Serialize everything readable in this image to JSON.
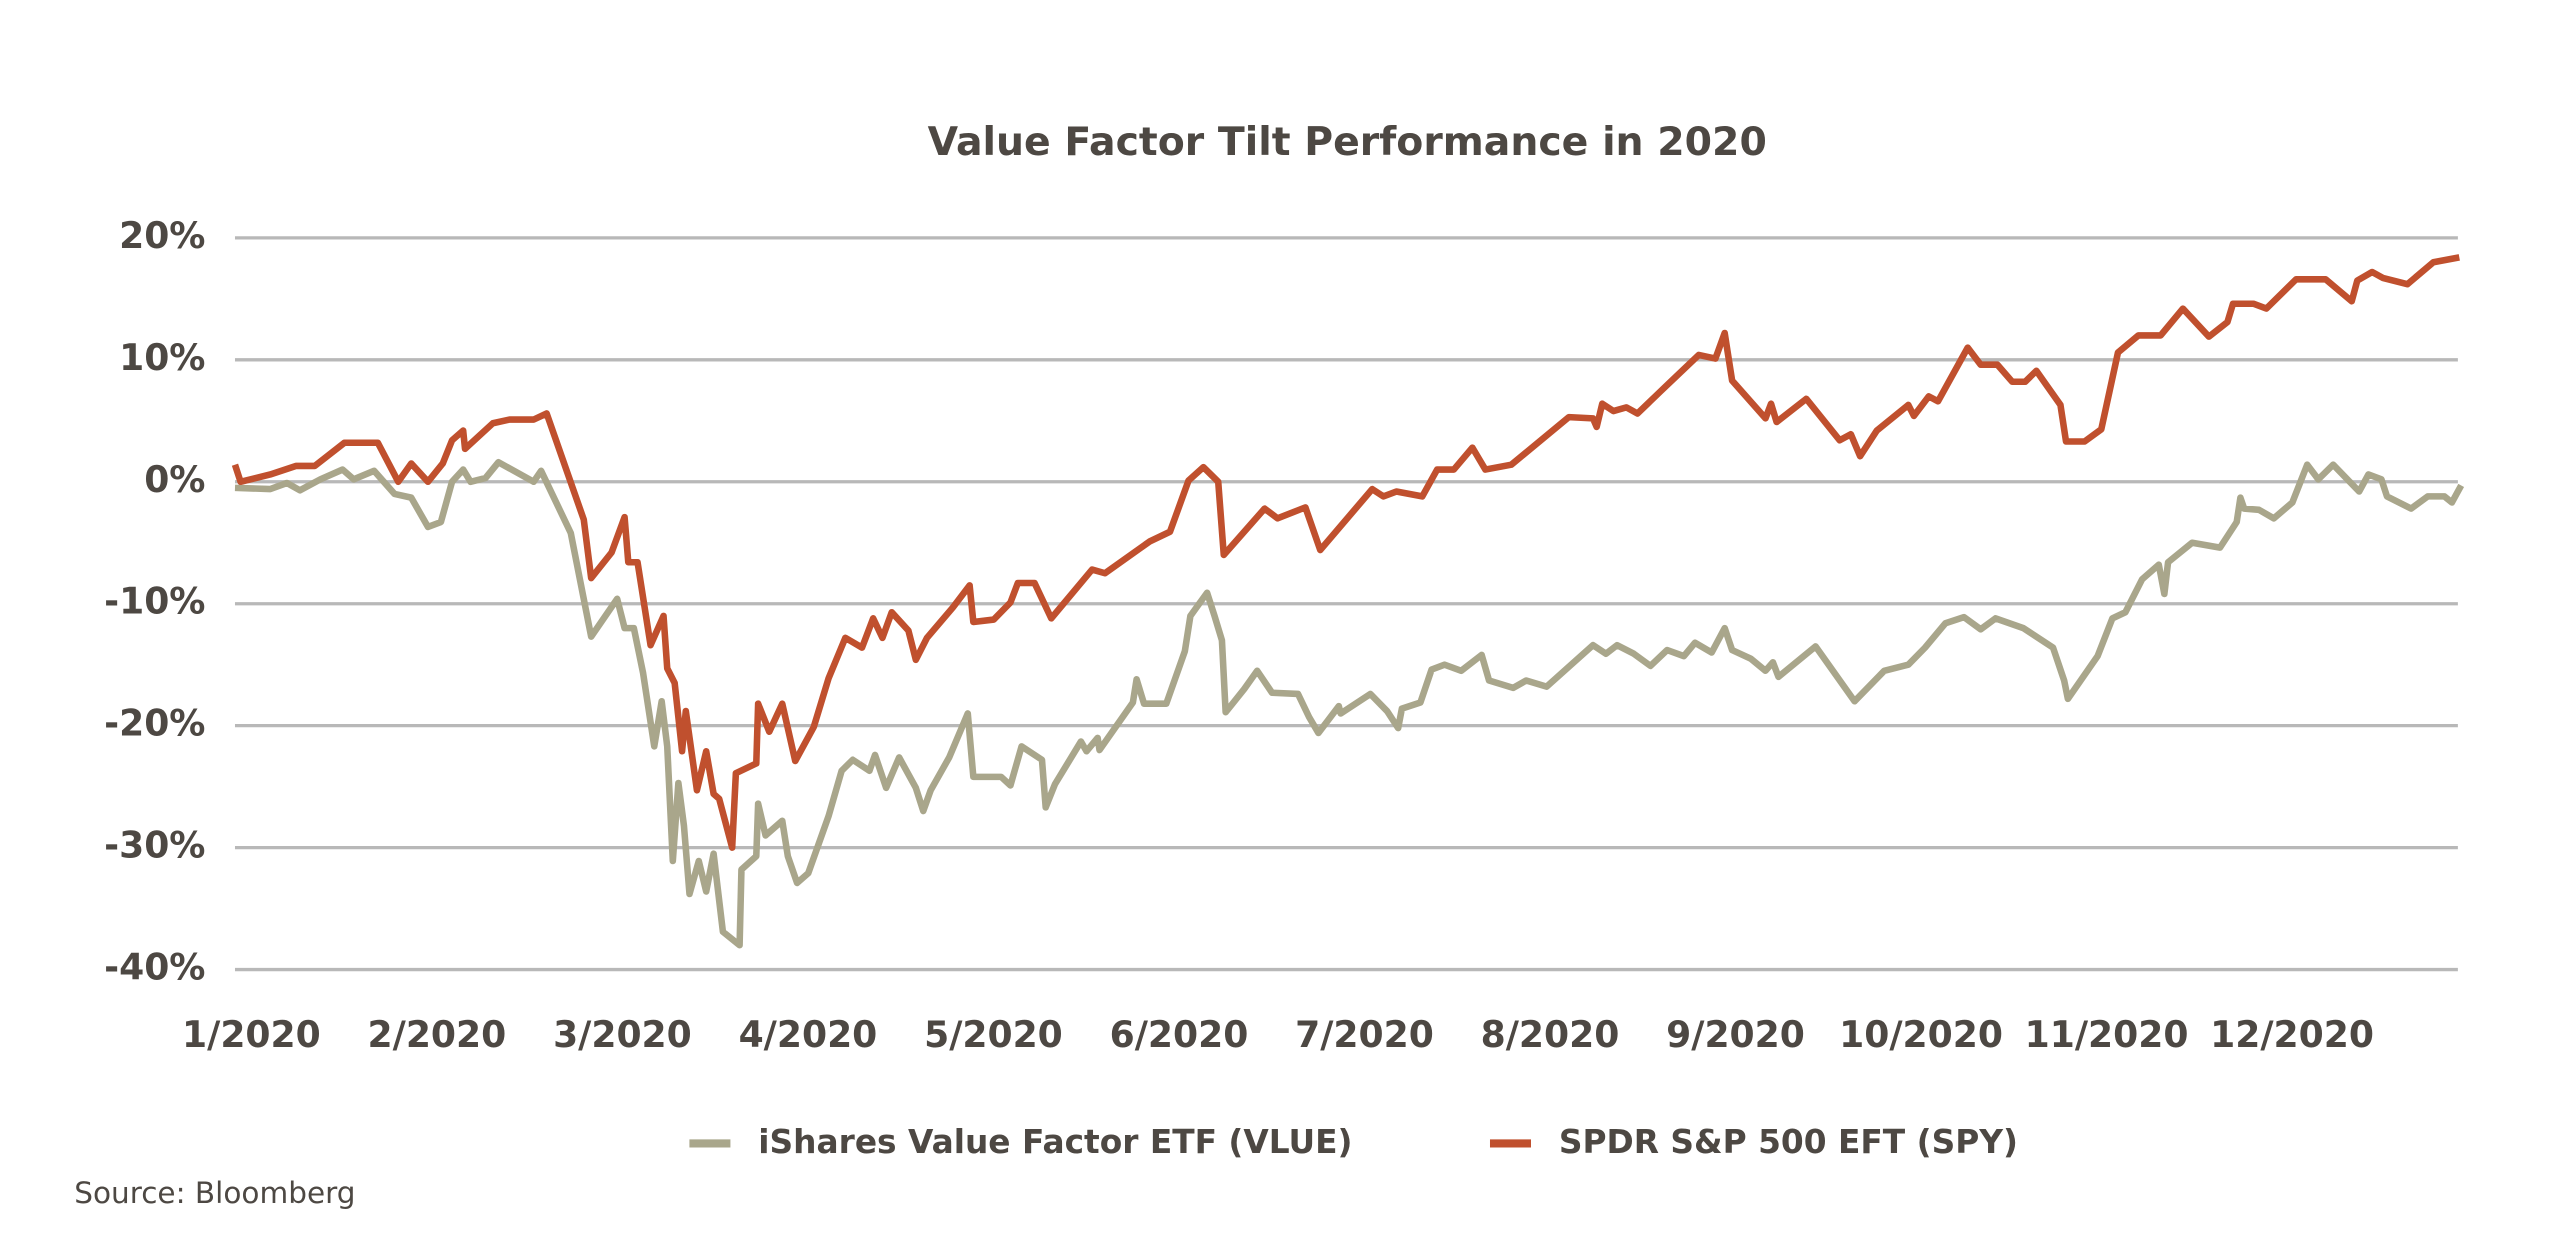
{
  "chart_data": {
    "type": "line",
    "title": "Value Factor Tilt Performance in 2020",
    "source": "Source: Bloomberg",
    "xlim": [
      0,
      12
    ],
    "xticks": [
      {
        "value": 0,
        "label": "1/2020"
      },
      {
        "value": 1,
        "label": "2/2020"
      },
      {
        "value": 2,
        "label": "3/2020"
      },
      {
        "value": 3,
        "label": "4/2020"
      },
      {
        "value": 4,
        "label": "5/2020"
      },
      {
        "value": 5,
        "label": "6/2020"
      },
      {
        "value": 6,
        "label": "7/2020"
      },
      {
        "value": 7,
        "label": "8/2020"
      },
      {
        "value": 8,
        "label": "9/2020"
      },
      {
        "value": 9,
        "label": "10/2020"
      },
      {
        "value": 10,
        "label": "11/2020"
      },
      {
        "value": 11,
        "label": "12/2020"
      }
    ],
    "ylim": [
      -40,
      20
    ],
    "yticks": [
      {
        "value": 20,
        "label": "20%"
      },
      {
        "value": 10,
        "label": "10%"
      },
      {
        "value": 0,
        "label": "0%"
      },
      {
        "value": -10,
        "label": "-10%"
      },
      {
        "value": -20,
        "label": "-20%"
      },
      {
        "value": -30,
        "label": "-30%"
      },
      {
        "value": -40,
        "label": "-40%"
      }
    ],
    "grid": true,
    "legend": "bottom",
    "series": [
      {
        "name": "iShares Value Factor ETF (VLUE)",
        "color": "#a9a68b",
        "x": [
          0,
          0.19,
          0.28,
          0.35,
          0.46,
          0.58,
          0.64,
          0.75,
          0.86,
          0.95,
          1.04,
          1.11,
          1.17,
          1.23,
          1.27,
          1.35,
          1.42,
          1.61,
          1.65,
          1.81,
          1.92,
          2.06,
          2.1,
          2.15,
          2.2,
          2.26,
          2.3,
          2.33,
          2.36,
          2.39,
          2.42,
          2.45,
          2.5,
          2.54,
          2.58,
          2.63,
          2.72,
          2.73,
          2.81,
          2.82,
          2.86,
          2.95,
          2.98,
          3.03,
          3.09,
          3.2,
          3.27,
          3.33,
          3.42,
          3.45,
          3.51,
          3.58,
          3.67,
          3.71,
          3.75,
          3.85,
          3.95,
          3.98,
          4.13,
          4.18,
          4.24,
          4.35,
          4.37,
          4.42,
          4.56,
          4.59,
          4.65,
          4.66,
          4.84,
          4.86,
          4.9,
          5.02,
          5.12,
          5.15,
          5.24,
          5.28,
          5.32,
          5.34,
          5.44,
          5.51,
          5.59,
          5.73,
          5.79,
          5.84,
          5.95,
          5.96,
          6.12,
          6.21,
          6.27,
          6.29,
          6.39,
          6.45,
          6.52,
          6.61,
          6.72,
          6.76,
          6.89,
          6.96,
          7.07,
          7.32,
          7.39,
          7.45,
          7.54,
          7.63,
          7.72,
          7.81,
          7.87,
          7.96,
          8.03,
          8.07,
          8.17,
          8.25,
          8.29,
          8.32,
          8.52,
          8.73,
          8.89,
          9.02,
          9.11,
          9.22,
          9.32,
          9.41,
          9.49,
          9.64,
          9.8,
          9.86,
          9.88,
          10.04,
          10.12,
          10.19,
          10.28,
          10.37,
          10.4,
          10.42,
          10.55,
          10.7,
          10.79,
          10.81,
          10.83,
          10.91,
          10.99,
          11.09,
          11.17,
          11.23,
          11.31,
          11.45,
          11.5,
          11.57,
          11.6,
          11.73,
          11.82,
          11.91,
          11.95,
          12.0
        ],
        "values": [
          -0.5,
          -0.6,
          -0.1,
          -0.7,
          0.2,
          1.0,
          0.2,
          0.9,
          -1.0,
          -1.3,
          -3.7,
          -3.3,
          0,
          1.0,
          0,
          0.3,
          1.6,
          0,
          0.9,
          -4.2,
          -12.7,
          -9.6,
          -12,
          -12,
          -15.7,
          -21.7,
          -18,
          -21.7,
          -31.1,
          -24.7,
          -28.2,
          -33.8,
          -31.1,
          -33.6,
          -30.5,
          -36.9,
          -38,
          -31.8,
          -30.7,
          -26.4,
          -29,
          -27.8,
          -30.7,
          -32.9,
          -32.1,
          -27.4,
          -23.7,
          -22.8,
          -23.7,
          -22.4,
          -25.1,
          -22.6,
          -25.1,
          -27,
          -25.3,
          -22.6,
          -19,
          -24.2,
          -24.2,
          -24.9,
          -21.7,
          -22.8,
          -26.7,
          -24.8,
          -21.3,
          -22.1,
          -21,
          -22,
          -18.1,
          -16.2,
          -18.2,
          -18.2,
          -13.9,
          -11,
          -9.1,
          -11,
          -13,
          -18.9,
          -17,
          -15.5,
          -17.3,
          -17.4,
          -19.3,
          -20.6,
          -18.4,
          -19,
          -17.4,
          -18.8,
          -20.2,
          -18.6,
          -18.1,
          -15.4,
          -15,
          -15.5,
          -14.2,
          -16.3,
          -16.9,
          -16.3,
          -16.8,
          -13.4,
          -14.1,
          -13.4,
          -14.1,
          -15.1,
          -13.8,
          -14.3,
          -13.2,
          -14,
          -12,
          -13.8,
          -14.5,
          -15.5,
          -14.8,
          -16,
          -13.5,
          -18,
          -15.5,
          -15,
          -13.6,
          -11.6,
          -11.1,
          -12.1,
          -11.2,
          -12,
          -13.6,
          -16.3,
          -17.8,
          -14.3,
          -11.2,
          -10.7,
          -8,
          -6.8,
          -9.2,
          -6.6,
          -5,
          -5.4,
          -3.3,
          -1.3,
          -2.2,
          -2.3,
          -3,
          -1.7,
          1.4,
          0.2,
          1.4,
          -0.8,
          0.6,
          0.2,
          -1.2,
          -2.2,
          -1.2,
          -1.2,
          -1.7,
          -0.3
        ]
      },
      {
        "name": "SPDR S&P 500 EFT (SPY)",
        "color": "#c0502e",
        "x": [
          0,
          0.03,
          0.19,
          0.33,
          0.43,
          0.59,
          0.77,
          0.88,
          0.95,
          1.04,
          1.12,
          1.17,
          1.23,
          1.24,
          1.39,
          1.48,
          1.61,
          1.68,
          1.88,
          1.92,
          2.03,
          2.1,
          2.12,
          2.17,
          2.24,
          2.31,
          2.33,
          2.37,
          2.41,
          2.43,
          2.49,
          2.54,
          2.58,
          2.61,
          2.68,
          2.7,
          2.81,
          2.82,
          2.88,
          2.95,
          3.02,
          3.12,
          3.2,
          3.29,
          3.38,
          3.44,
          3.49,
          3.54,
          3.63,
          3.67,
          3.73,
          3.87,
          3.96,
          3.98,
          4.09,
          4.18,
          4.22,
          4.31,
          4.4,
          4.62,
          4.69,
          4.93,
          5.04,
          5.14,
          5.22,
          5.3,
          5.33,
          5.55,
          5.62,
          5.77,
          5.85,
          6.13,
          6.19,
          6.26,
          6.4,
          6.48,
          6.57,
          6.67,
          6.74,
          6.88,
          7.19,
          7.32,
          7.34,
          7.37,
          7.43,
          7.5,
          7.56,
          7.69,
          7.89,
          7.98,
          8.03,
          8.07,
          8.25,
          8.28,
          8.31,
          8.47,
          8.65,
          8.71,
          8.76,
          8.85,
          9.02,
          9.05,
          9.13,
          9.18,
          9.34,
          9.41,
          9.5,
          9.58,
          9.65,
          9.71,
          9.84,
          9.87,
          9.97,
          10.06,
          10.15,
          10.26,
          10.38,
          10.5,
          10.64,
          10.74,
          10.77,
          10.88,
          10.95,
          11.11,
          11.27,
          11.41,
          11.44,
          11.52,
          11.58,
          11.71,
          11.85,
          11.99
        ],
        "values": [
          1.4,
          0,
          0.6,
          1.3,
          1.3,
          3.2,
          3.2,
          0,
          1.5,
          0,
          1.5,
          3.4,
          4.2,
          2.7,
          4.8,
          5.1,
          5.1,
          5.6,
          -3.1,
          -7.9,
          -5.8,
          -2.9,
          -6.6,
          -6.6,
          -13.4,
          -11,
          -15.3,
          -16.5,
          -22.1,
          -18.8,
          -25.3,
          -22.1,
          -25.6,
          -26,
          -30,
          -23.9,
          -23.1,
          -18.2,
          -20.5,
          -18.2,
          -22.9,
          -20.1,
          -16.1,
          -12.8,
          -13.6,
          -11.2,
          -12.8,
          -10.7,
          -12.2,
          -14.6,
          -12.8,
          -10.3,
          -8.5,
          -11.5,
          -11.3,
          -9.9,
          -8.3,
          -8.3,
          -11.2,
          -7.2,
          -7.5,
          -4.9,
          -4.1,
          0.1,
          1.2,
          0,
          -6,
          -2.2,
          -3,
          -2.1,
          -5.6,
          -0.6,
          -1.2,
          -0.8,
          -1.2,
          1.0,
          1.0,
          2.8,
          1.0,
          1.4,
          5.3,
          5.2,
          4.5,
          6.4,
          5.8,
          6.1,
          5.6,
          7.5,
          10.4,
          10.1,
          12.2,
          8.3,
          5.2,
          6.4,
          4.9,
          6.8,
          3.4,
          3.9,
          2.1,
          4.2,
          6.3,
          5.4,
          7.0,
          6.6,
          11.0,
          9.6,
          9.6,
          8.2,
          8.2,
          9.1,
          6.3,
          3.3,
          3.3,
          4.3,
          10.6,
          12.0,
          12.0,
          14.2,
          11.9,
          13.1,
          14.6,
          14.6,
          14.2,
          16.6,
          16.6,
          14.8,
          16.5,
          17.2,
          16.7,
          16.2,
          18.0,
          18.4
        ]
      }
    ]
  }
}
